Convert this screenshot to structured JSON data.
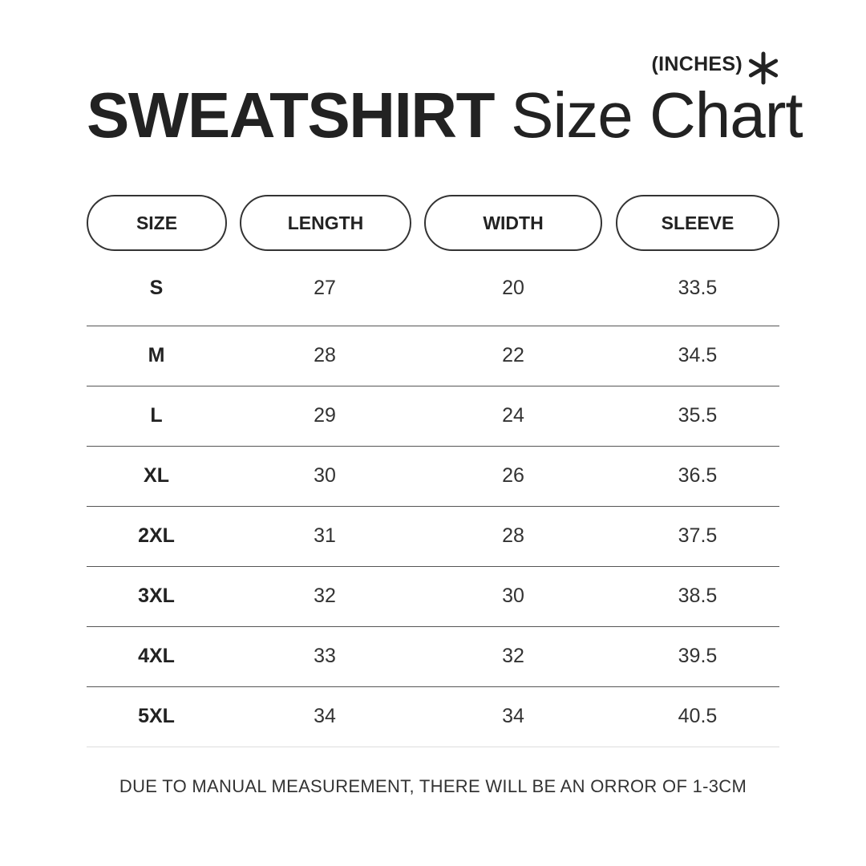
{
  "header": {
    "unit": "(INCHES)",
    "unit_icon": "asterisk-icon",
    "title_bold": "SWEATSHIRT",
    "title_light": "Size Chart"
  },
  "table": {
    "columns": [
      "SIZE",
      "LENGTH",
      "WIDTH",
      "SLEEVE"
    ],
    "rows": [
      [
        "S",
        "27",
        "20",
        "33.5"
      ],
      [
        "M",
        "28",
        "22",
        "34.5"
      ],
      [
        "L",
        "29",
        "24",
        "35.5"
      ],
      [
        "XL",
        "30",
        "26",
        "36.5"
      ],
      [
        "2XL",
        "31",
        "28",
        "37.5"
      ],
      [
        "3XL",
        "32",
        "30",
        "38.5"
      ],
      [
        "4XL",
        "33",
        "32",
        "39.5"
      ],
      [
        "5XL",
        "34",
        "34",
        "40.5"
      ]
    ]
  },
  "footer": {
    "note": "DUE TO MANUAL MEASUREMENT, THERE WILL BE AN ORROR OF 1-3CM"
  }
}
